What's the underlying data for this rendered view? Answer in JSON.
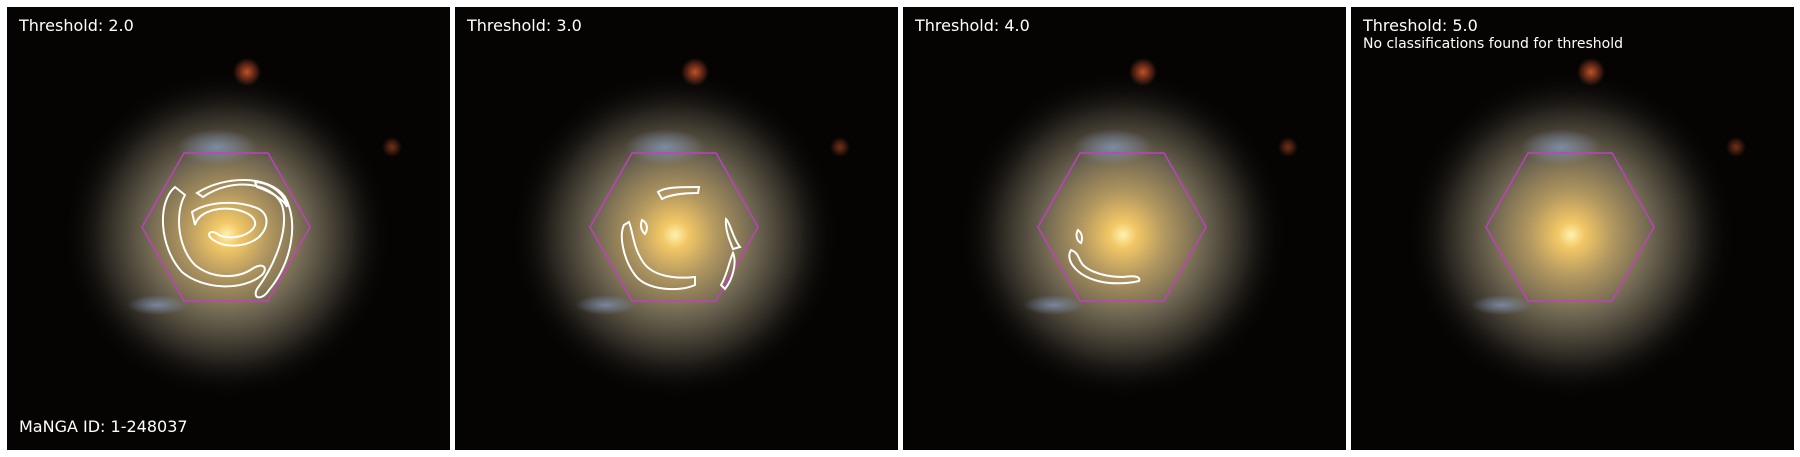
{
  "panels": [
    {
      "title": "Threshold: 2.0",
      "note": "",
      "footer": "MaNGA ID: 1-248037"
    },
    {
      "title": "Threshold: 3.0",
      "note": "",
      "footer": ""
    },
    {
      "title": "Threshold: 4.0",
      "note": "",
      "footer": ""
    },
    {
      "title": "Threshold: 5.0",
      "note": "No classifications found for threshold",
      "footer": ""
    }
  ],
  "colors": {
    "hexagon": "#c040c0",
    "contour": "#ffffff",
    "background": "#050403"
  }
}
